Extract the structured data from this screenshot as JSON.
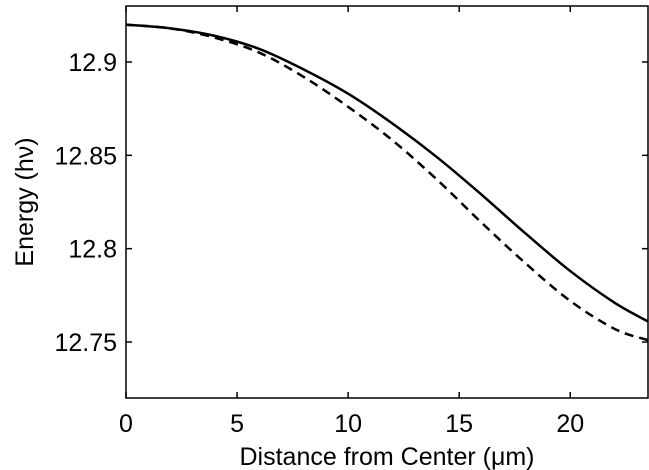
{
  "chart_data": {
    "type": "line",
    "title": "",
    "xlabel": "Distance from Center (μm)",
    "ylabel": "Energy (hν)",
    "xlim": [
      0,
      23.5
    ],
    "ylim": [
      12.72,
      12.93
    ],
    "xticks": [
      0,
      5,
      10,
      15,
      20
    ],
    "xtick_labels": [
      "0",
      "5",
      "10",
      "15",
      "20"
    ],
    "yticks": [
      12.75,
      12.8,
      12.85,
      12.9
    ],
    "ytick_labels": [
      "12.75",
      "12.8",
      "12.85",
      "12.9"
    ],
    "grid": false,
    "legend": "none",
    "series": [
      {
        "style": "solid",
        "color": "#000000",
        "x": [
          0,
          2,
          4,
          6,
          8,
          10,
          12,
          14,
          16,
          18,
          20,
          22,
          23.5
        ],
        "y": [
          12.92,
          12.918,
          12.914,
          12.907,
          12.896,
          12.883,
          12.867,
          12.849,
          12.829,
          12.808,
          12.788,
          12.771,
          12.761
        ]
      },
      {
        "style": "dashed",
        "color": "#000000",
        "x": [
          0,
          2,
          4,
          6,
          8,
          10,
          12,
          14,
          16,
          18,
          20,
          22,
          23.5
        ],
        "y": [
          12.92,
          12.918,
          12.913,
          12.905,
          12.892,
          12.876,
          12.858,
          12.837,
          12.814,
          12.792,
          12.772,
          12.757,
          12.751
        ]
      }
    ]
  }
}
